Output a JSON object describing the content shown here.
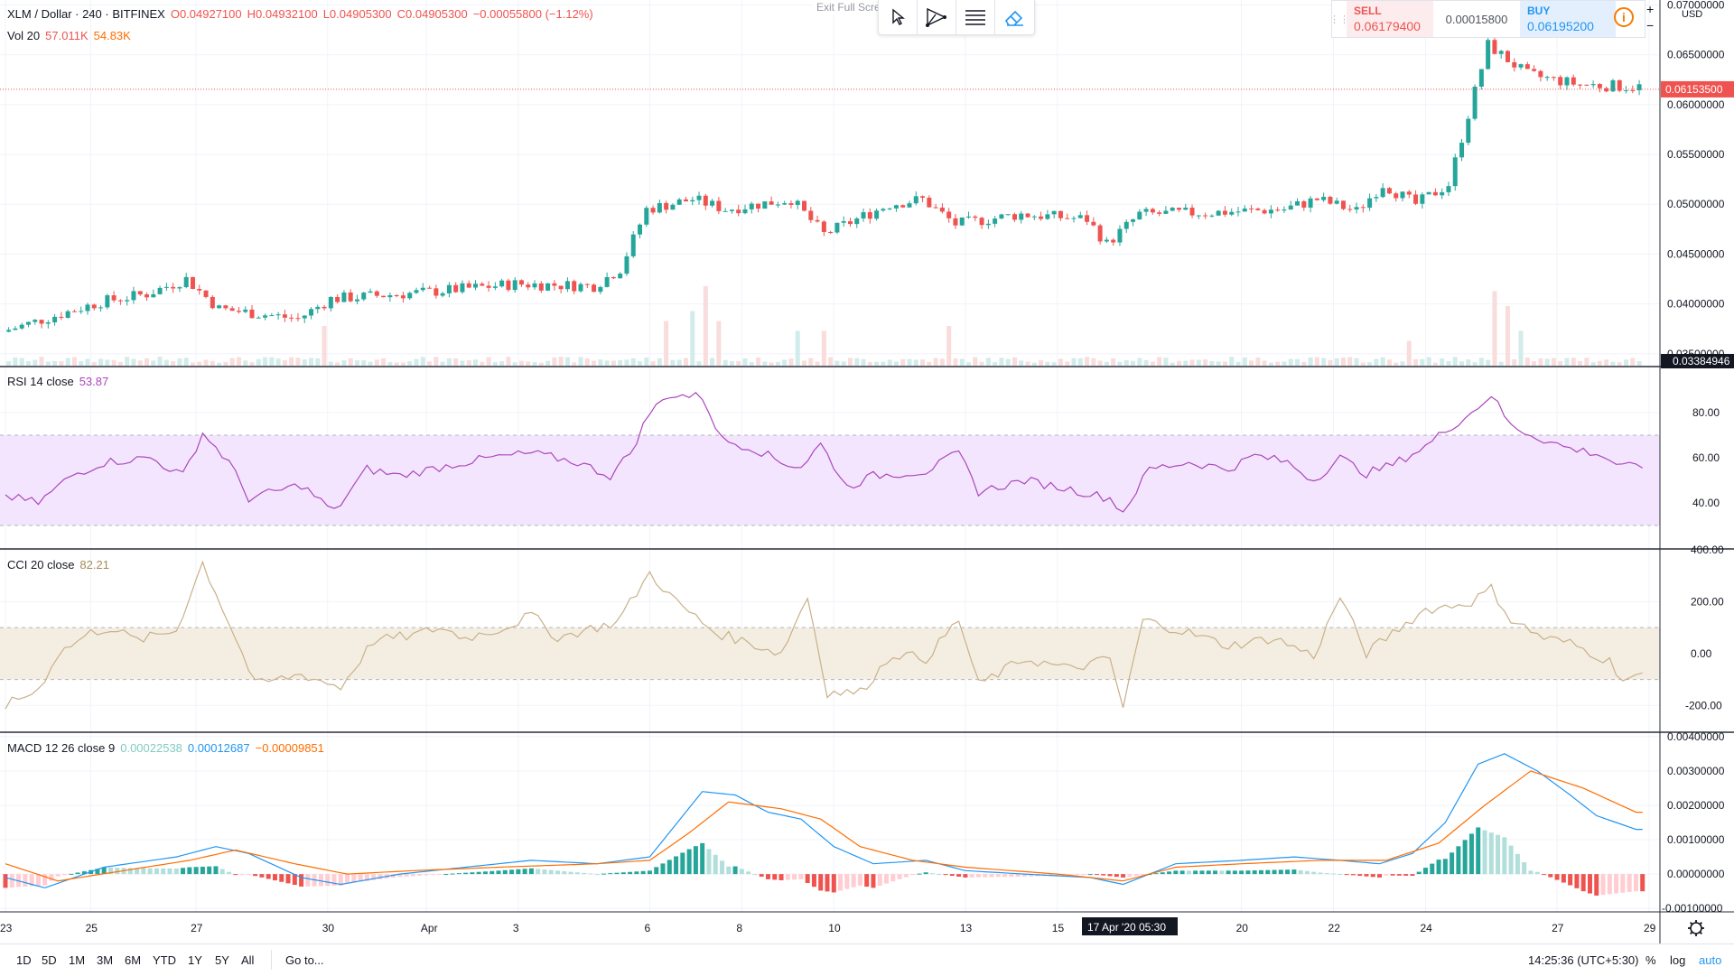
{
  "header": {
    "symbol": "XLM / Dollar · 240 · BITFINEX",
    "open": "O0.04927100",
    "high": "H0.04932100",
    "low": "L0.04905300",
    "close": "C0.04905300",
    "change": "−0.00055800 (−1.12%)",
    "vol_label": "Vol 20",
    "vol_value": "57.011K",
    "vol_ma": "54.83K",
    "exit_fullscreen": "Exit Full Scre"
  },
  "toolbar": {
    "tools": [
      "cursor-icon",
      "trend-angle-icon",
      "text-lines-icon",
      "eraser-icon"
    ]
  },
  "trade": {
    "sell_label": "SELL",
    "sell_price": "0.06179400",
    "spread": "0.00015800",
    "buy_label": "BUY",
    "buy_price": "0.06195200",
    "info_glyph": "i",
    "plus": "+",
    "minus": "−"
  },
  "currency": "USD",
  "indicators": {
    "rsi": {
      "label": "RSI 14 close",
      "value": "53.87"
    },
    "cci": {
      "label": "CCI 20 close",
      "value": "82.21"
    },
    "macd": {
      "label": "MACD 12 26 close 9",
      "hist": "0.00022538",
      "macd": "0.00012687",
      "signal": "−0.00009851"
    }
  },
  "crosshair": {
    "time_label": "17 Apr '20   05:30"
  },
  "bottom": {
    "ranges": [
      "1D",
      "5D",
      "1M",
      "3M",
      "6M",
      "YTD",
      "1Y",
      "5Y",
      "All"
    ],
    "goto": "Go to...",
    "clock": "14:25:36 (UTC+5:30)",
    "percent": "%",
    "log": "log",
    "auto": "auto"
  },
  "colors": {
    "up": "#26a69a",
    "down": "#ef5350",
    "rsi": "#ab47bc",
    "cci": "#c9b08a",
    "macd": "#2196f3",
    "signal": "#ff6d00",
    "price_line": "#ef5350"
  },
  "chart_data": [
    {
      "type": "candlestick",
      "title": "XLM / Dollar · 240 · BITFINEX",
      "x_tick_labels": [
        "23",
        "25",
        "27",
        "30",
        "Apr",
        "3",
        "6",
        "8",
        "10",
        "13",
        "15",
        "20",
        "22",
        "24",
        "27",
        "29"
      ],
      "y_tick_labels": [
        "0.07000000",
        "0.06500000",
        "0.06000000",
        "0.05500000",
        "0.05000000",
        "0.04500000",
        "0.04000000",
        "0.03500000"
      ],
      "ylim": [
        0.0338,
        0.0705
      ],
      "current_price": "0.06153500",
      "axis_bottom_label": "0.03384946",
      "series": [
        {
          "name": "close",
          "anchors": [
            [
              0,
              0.0372
            ],
            [
              15,
              0.0402
            ],
            [
              22,
              0.041
            ],
            [
              28,
              0.0425
            ],
            [
              33,
              0.0395
            ],
            [
              45,
              0.0385
            ],
            [
              50,
              0.0405
            ],
            [
              65,
              0.0412
            ],
            [
              78,
              0.042
            ],
            [
              90,
              0.0418
            ],
            [
              94,
              0.0435
            ],
            [
              98,
              0.0495
            ],
            [
              105,
              0.0505
            ],
            [
              110,
              0.0495
            ],
            [
              120,
              0.0505
            ],
            [
              125,
              0.047
            ],
            [
              135,
              0.05
            ],
            [
              140,
              0.0505
            ],
            [
              145,
              0.048
            ],
            [
              155,
              0.049
            ],
            [
              165,
              0.0485
            ],
            [
              168,
              0.046
            ],
            [
              173,
              0.049
            ],
            [
              185,
              0.0492
            ],
            [
              195,
              0.0495
            ],
            [
              200,
              0.0505
            ],
            [
              206,
              0.0493
            ],
            [
              210,
              0.052
            ],
            [
              215,
              0.05
            ],
            [
              220,
              0.052
            ],
            [
              226,
              0.066
            ],
            [
              232,
              0.063
            ],
            [
              240,
              0.062
            ],
            [
              248,
              0.0618
            ]
          ]
        },
        {
          "name": "volume",
          "spikes": [
            [
              48,
              0.4
            ],
            [
              100,
              0.45
            ],
            [
              104,
              0.55
            ],
            [
              106,
              0.8
            ],
            [
              108,
              0.45
            ],
            [
              120,
              0.35
            ],
            [
              124,
              0.35
            ],
            [
              143,
              0.4
            ],
            [
              213,
              0.25
            ],
            [
              226,
              0.75
            ],
            [
              228,
              0.6
            ],
            [
              230,
              0.35
            ]
          ]
        }
      ]
    },
    {
      "type": "line",
      "title": "RSI 14 close",
      "y_tick_labels": [
        "80.00",
        "60.00",
        "40.00"
      ],
      "ylim": [
        20,
        100
      ],
      "bands": [
        30,
        70
      ],
      "series": [
        {
          "name": "RSI",
          "anchors": [
            [
              0,
              43
            ],
            [
              5,
              40
            ],
            [
              10,
              52
            ],
            [
              15,
              58
            ],
            [
              22,
              60
            ],
            [
              27,
              52
            ],
            [
              30,
              71
            ],
            [
              34,
              58
            ],
            [
              37,
              42
            ],
            [
              45,
              48
            ],
            [
              50,
              36
            ],
            [
              55,
              55
            ],
            [
              60,
              52
            ],
            [
              68,
              57
            ],
            [
              74,
              60
            ],
            [
              80,
              62
            ],
            [
              87,
              58
            ],
            [
              92,
              52
            ],
            [
              95,
              62
            ],
            [
              98,
              80
            ],
            [
              101,
              88
            ],
            [
              106,
              87
            ],
            [
              109,
              68
            ],
            [
              114,
              64
            ],
            [
              118,
              58
            ],
            [
              121,
              56
            ],
            [
              124,
              66
            ],
            [
              128,
              47
            ],
            [
              132,
              52
            ],
            [
              140,
              54
            ],
            [
              145,
              62
            ],
            [
              148,
              45
            ],
            [
              155,
              50
            ],
            [
              162,
              46
            ],
            [
              168,
              42
            ],
            [
              170,
              36
            ],
            [
              174,
              55
            ],
            [
              180,
              58
            ],
            [
              186,
              55
            ],
            [
              190,
              61
            ],
            [
              195,
              58
            ],
            [
              199,
              50
            ],
            [
              203,
              60
            ],
            [
              207,
              53
            ],
            [
              211,
              57
            ],
            [
              216,
              65
            ],
            [
              219,
              72
            ],
            [
              223,
              80
            ],
            [
              226,
              88
            ],
            [
              229,
              74
            ],
            [
              234,
              68
            ],
            [
              238,
              64
            ],
            [
              242,
              62
            ],
            [
              246,
              56
            ],
            [
              248,
              56
            ]
          ]
        }
      ]
    },
    {
      "type": "line",
      "title": "CCI 20 close",
      "y_tick_labels": [
        "400.00",
        "200.00",
        "0.00",
        "-200.00"
      ],
      "ylim": [
        -300,
        400
      ],
      "bands": [
        -100,
        100
      ],
      "series": [
        {
          "name": "CCI",
          "anchors": [
            [
              0,
              -200
            ],
            [
              5,
              -140
            ],
            [
              8,
              0
            ],
            [
              13,
              80
            ],
            [
              16,
              100
            ],
            [
              20,
              50
            ],
            [
              26,
              90
            ],
            [
              30,
              350
            ],
            [
              34,
              120
            ],
            [
              38,
              -120
            ],
            [
              45,
              -80
            ],
            [
              51,
              -130
            ],
            [
              56,
              50
            ],
            [
              62,
              70
            ],
            [
              66,
              100
            ],
            [
              70,
              60
            ],
            [
              76,
              100
            ],
            [
              80,
              150
            ],
            [
              84,
              60
            ],
            [
              88,
              90
            ],
            [
              93,
              120
            ],
            [
              98,
              310
            ],
            [
              102,
              200
            ],
            [
              108,
              80
            ],
            [
              112,
              50
            ],
            [
              118,
              0
            ],
            [
              122,
              220
            ],
            [
              125,
              -150
            ],
            [
              130,
              -150
            ],
            [
              135,
              0
            ],
            [
              140,
              -20
            ],
            [
              145,
              130
            ],
            [
              148,
              -120
            ],
            [
              155,
              -20
            ],
            [
              162,
              -60
            ],
            [
              168,
              -20
            ],
            [
              170,
              -210
            ],
            [
              173,
              130
            ],
            [
              180,
              80
            ],
            [
              186,
              30
            ],
            [
              193,
              60
            ],
            [
              199,
              -10
            ],
            [
              203,
              220
            ],
            [
              207,
              0
            ],
            [
              211,
              80
            ],
            [
              216,
              170
            ],
            [
              219,
              180
            ],
            [
              223,
              200
            ],
            [
              226,
              250
            ],
            [
              229,
              130
            ],
            [
              234,
              60
            ],
            [
              238,
              40
            ],
            [
              244,
              -30
            ],
            [
              246,
              -100
            ],
            [
              248,
              -90
            ]
          ]
        }
      ]
    },
    {
      "type": "line",
      "title": "MACD 12 26 close 9",
      "y_tick_labels": [
        "0.00400000",
        "0.00300000",
        "0.00200000",
        "0.00100000",
        "0.00000000",
        "-0.00100000"
      ],
      "ylim": [
        -0.0011,
        0.0041
      ],
      "x_tick_labels": [
        "23",
        "25",
        "27",
        "30",
        "Apr",
        "3",
        "6",
        "8",
        "10",
        "13",
        "15",
        "20",
        "22",
        "24",
        "27",
        "29"
      ],
      "series": [
        {
          "name": "MACD",
          "anchors": [
            [
              0,
              -0.0001
            ],
            [
              6,
              -0.0004
            ],
            [
              15,
              0.0002
            ],
            [
              26,
              0.0005
            ],
            [
              32,
              0.0008
            ],
            [
              37,
              0.0006
            ],
            [
              45,
              -0.0001
            ],
            [
              51,
              -0.0003
            ],
            [
              60,
              0.0
            ],
            [
              70,
              0.0002
            ],
            [
              80,
              0.0004
            ],
            [
              90,
              0.0003
            ],
            [
              98,
              0.0005
            ],
            [
              106,
              0.0024
            ],
            [
              111,
              0.0023
            ],
            [
              116,
              0.0018
            ],
            [
              121,
              0.0016
            ],
            [
              126,
              0.0008
            ],
            [
              132,
              0.0003
            ],
            [
              140,
              0.0004
            ],
            [
              146,
              0.0001
            ],
            [
              155,
              0.0
            ],
            [
              165,
              -0.0001
            ],
            [
              170,
              -0.0003
            ],
            [
              178,
              0.0003
            ],
            [
              188,
              0.0004
            ],
            [
              196,
              0.0005
            ],
            [
              203,
              0.0004
            ],
            [
              209,
              0.0003
            ],
            [
              214,
              0.0006
            ],
            [
              219,
              0.0015
            ],
            [
              224,
              0.0032
            ],
            [
              228,
              0.0035
            ],
            [
              233,
              0.003
            ],
            [
              238,
              0.0023
            ],
            [
              242,
              0.0017
            ],
            [
              248,
              0.0013
            ]
          ]
        },
        {
          "name": "Signal",
          "anchors": [
            [
              0,
              0.0003
            ],
            [
              8,
              -0.0002
            ],
            [
              18,
              0.0001
            ],
            [
              28,
              0.0004
            ],
            [
              35,
              0.0007
            ],
            [
              44,
              0.0003
            ],
            [
              52,
              0.0
            ],
            [
              62,
              0.0001
            ],
            [
              75,
              0.0002
            ],
            [
              90,
              0.0003
            ],
            [
              98,
              0.0004
            ],
            [
              104,
              0.0012
            ],
            [
              110,
              0.0021
            ],
            [
              118,
              0.0019
            ],
            [
              124,
              0.0016
            ],
            [
              130,
              0.0008
            ],
            [
              138,
              0.0004
            ],
            [
              146,
              0.0002
            ],
            [
              160,
              0.0
            ],
            [
              170,
              -0.0002
            ],
            [
              178,
              0.0002
            ],
            [
              188,
              0.0003
            ],
            [
              200,
              0.0004
            ],
            [
              210,
              0.0004
            ],
            [
              218,
              0.0009
            ],
            [
              225,
              0.002
            ],
            [
              232,
              0.003
            ],
            [
              240,
              0.0025
            ],
            [
              248,
              0.0018
            ]
          ]
        }
      ]
    }
  ]
}
